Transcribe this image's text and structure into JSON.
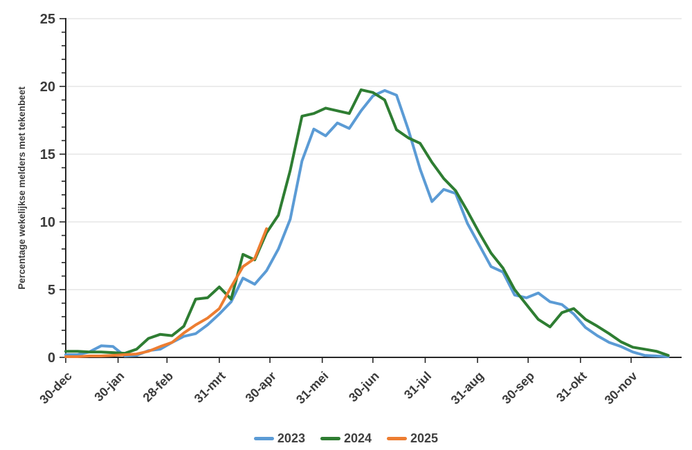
{
  "chart_data": {
    "type": "line",
    "title": "",
    "xlabel": "",
    "ylabel": "Percentage wekelijkse melders met tekenbeet",
    "ylim": [
      0,
      25
    ],
    "y_ticks_major": [
      0,
      5,
      10,
      15,
      20,
      25
    ],
    "y_minor_tick_step": 1,
    "grid": {
      "horizontal": true,
      "values": [
        5,
        10,
        15,
        20,
        25
      ],
      "color": "#d9d9d9"
    },
    "x_axis": {
      "unit": "weekly data points, 7 days apart, first point 30-dec",
      "tick_labels": [
        "30-dec",
        "30-jan",
        "28-feb",
        "31-mrt",
        "30-apr",
        "31-mei",
        "30-jun",
        "31-jul",
        "31-aug",
        "30-sep",
        "31-okt",
        "30-nov"
      ],
      "tick_day_offsets": [
        0,
        31,
        60,
        91,
        121,
        152,
        182,
        213,
        244,
        274,
        305,
        335
      ],
      "total_days_span": 364,
      "label_angle_deg": -45
    },
    "series": [
      {
        "name": "2023",
        "color": "#5B9BD5",
        "week_step_days": 7,
        "values": [
          0.2,
          0.2,
          0.4,
          0.85,
          0.8,
          0.1,
          0.15,
          0.5,
          0.6,
          1.1,
          1.55,
          1.75,
          2.4,
          3.2,
          4.1,
          5.85,
          5.4,
          6.4,
          8.0,
          10.2,
          14.5,
          16.85,
          16.35,
          17.3,
          16.9,
          18.2,
          19.3,
          19.7,
          19.35,
          16.8,
          13.9,
          11.5,
          12.4,
          12.1,
          9.9,
          8.3,
          6.7,
          6.3,
          4.6,
          4.4,
          4.75,
          4.1,
          3.9,
          3.2,
          2.2,
          1.6,
          1.1,
          0.8,
          0.4,
          0.15,
          0.1,
          0.05
        ]
      },
      {
        "name": "2024",
        "color": "#2E7D32",
        "week_step_days": 7,
        "values": [
          0.45,
          0.45,
          0.4,
          0.4,
          0.35,
          0.3,
          0.6,
          1.4,
          1.7,
          1.6,
          2.3,
          4.3,
          4.4,
          5.2,
          4.3,
          7.6,
          7.2,
          9.2,
          10.5,
          13.8,
          17.8,
          18.0,
          18.4,
          18.2,
          18.0,
          19.75,
          19.55,
          19.0,
          16.8,
          16.2,
          15.8,
          14.4,
          13.2,
          12.3,
          10.8,
          9.2,
          7.7,
          6.6,
          5.0,
          3.9,
          2.8,
          2.25,
          3.3,
          3.6,
          2.8,
          2.3,
          1.75,
          1.15,
          0.75,
          0.6,
          0.45,
          0.15
        ]
      },
      {
        "name": "2025",
        "color": "#ED7D31",
        "week_step_days": 7,
        "values": [
          0.05,
          0.05,
          0.1,
          0.1,
          0.15,
          0.2,
          0.25,
          0.45,
          0.8,
          1.1,
          1.8,
          2.4,
          2.9,
          3.6,
          5.2,
          6.7,
          7.3,
          9.5
        ]
      }
    ],
    "legend": {
      "position": "bottom-center",
      "entries": [
        "2023",
        "2024",
        "2025"
      ]
    }
  },
  "style": {
    "text_color": "#3b3b3b",
    "tick_label_color": "#404040",
    "axis_color": "#262626",
    "background": "#ffffff"
  }
}
